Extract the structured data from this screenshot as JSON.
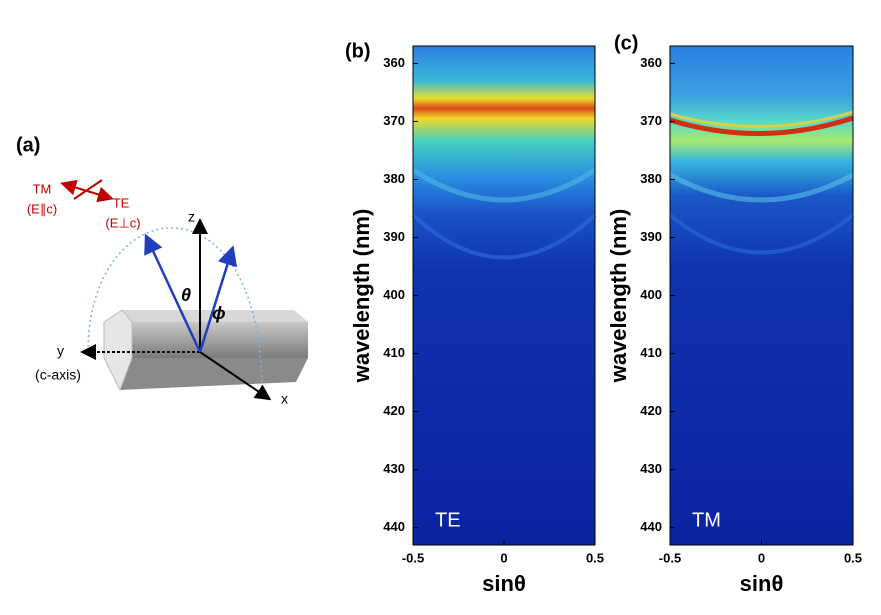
{
  "diagram": {
    "label": "(a)",
    "tm": "TM",
    "tm_sub": "(E∥c)",
    "te": "TE",
    "te_sub": "(E⊥c)",
    "z": "z",
    "y": "y",
    "y_sub": "(c-axis)",
    "x": "x",
    "theta": "θ",
    "phi": "ϕ"
  },
  "chart_data": [
    {
      "type": "heatmap",
      "panel": "(b)",
      "annotation": "TE",
      "xlabel": "sinθ",
      "ylabel": "wavelength (nm)",
      "xlim": [
        -0.5,
        0.5
      ],
      "xticks": [
        -0.5,
        0,
        0.5
      ],
      "ylim": [
        443,
        357
      ],
      "yticks": [
        360,
        370,
        380,
        390,
        400,
        410,
        420,
        430,
        440
      ]
    },
    {
      "type": "heatmap",
      "panel": "(c)",
      "annotation": "TM",
      "xlabel": "sinθ",
      "ylabel": "wavelength (nm)",
      "xlim": [
        -0.5,
        0.5
      ],
      "xticks": [
        -0.5,
        0,
        0.5
      ],
      "ylim": [
        443,
        357
      ],
      "yticks": [
        360,
        370,
        380,
        390,
        400,
        410,
        420,
        430,
        440
      ]
    }
  ]
}
